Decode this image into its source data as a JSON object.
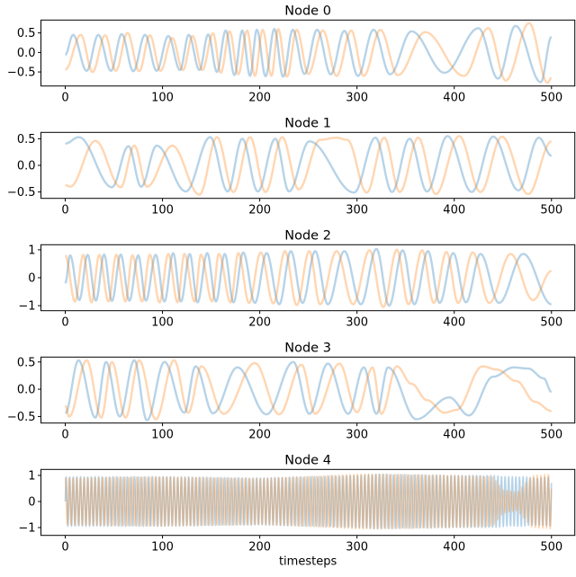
{
  "chart_data": [
    {
      "type": "line",
      "title": "Node 0",
      "xlim": [
        -25,
        524
      ],
      "ylim": [
        -0.86,
        0.83
      ],
      "xticks": [
        0,
        100,
        200,
        300,
        400,
        500
      ],
      "xtick_labels": [
        "0",
        "100",
        "200",
        "300",
        "400",
        "500"
      ],
      "yticks": [
        0.5,
        0.0,
        -0.5
      ],
      "ytick_labels": [
        "0.5",
        "0.0",
        "−0.5"
      ],
      "xlabel": "",
      "grid": false,
      "series": [
        {
          "color": "#1f77b4",
          "x": [
            0,
            8,
            22,
            34,
            47,
            58,
            70,
            82,
            94,
            106,
            118,
            127,
            138,
            147,
            156,
            165,
            174,
            182,
            190,
            197,
            206,
            215,
            224,
            234,
            246,
            259,
            273,
            287,
            301,
            317,
            334,
            356,
            390,
            425,
            445,
            463,
            489,
            500
          ],
          "y": [
            -0.06,
            0.45,
            -0.47,
            0.45,
            -0.47,
            0.47,
            -0.48,
            0.45,
            -0.47,
            0.42,
            -0.45,
            0.45,
            -0.45,
            0.46,
            -0.5,
            0.56,
            -0.58,
            0.56,
            -0.6,
            0.58,
            -0.61,
            0.6,
            -0.62,
            0.58,
            -0.55,
            0.58,
            -0.56,
            0.55,
            -0.6,
            0.58,
            -0.56,
            0.54,
            -0.52,
            0.62,
            -0.67,
            0.68,
            -0.76,
            0.4
          ]
        },
        {
          "color": "#ff7f0e",
          "x": [
            0,
            16,
            28,
            41,
            52,
            64,
            76,
            87,
            98,
            110,
            121,
            131,
            141,
            152,
            160,
            169,
            178,
            187,
            195,
            203,
            212,
            219,
            228,
            238,
            250,
            265,
            279,
            294,
            307,
            324,
            342,
            370,
            410,
            435,
            453,
            477,
            496,
            500
          ],
          "y": [
            -0.44,
            0.45,
            -0.5,
            0.44,
            -0.47,
            0.5,
            -0.48,
            0.44,
            -0.47,
            0.37,
            -0.45,
            0.42,
            -0.45,
            0.49,
            -0.52,
            0.54,
            -0.56,
            0.56,
            -0.6,
            0.58,
            -0.6,
            0.6,
            -0.62,
            0.58,
            -0.55,
            0.56,
            -0.6,
            0.56,
            -0.6,
            0.58,
            -0.58,
            0.52,
            -0.6,
            0.62,
            -0.72,
            0.75,
            -0.78,
            -0.65
          ]
        }
      ]
    },
    {
      "type": "line",
      "title": "Node 1",
      "xlim": [
        -25,
        524
      ],
      "ylim": [
        -0.62,
        0.62
      ],
      "xticks": [
        0,
        100,
        200,
        300,
        400,
        500
      ],
      "xtick_labels": [
        "0",
        "100",
        "200",
        "300",
        "400",
        "500"
      ],
      "yticks": [
        0.5,
        0.0,
        -0.5
      ],
      "ytick_labels": [
        "0.5",
        "0.0",
        "−0.5"
      ],
      "xlabel": "",
      "grid": false,
      "series": [
        {
          "color": "#1f77b4",
          "x": [
            0,
            14,
            48,
            65,
            78,
            94,
            124,
            149,
            167,
            182,
            198,
            216,
            230,
            251,
            297,
            319,
            336,
            354,
            372,
            393,
            418,
            440,
            466,
            487,
            500
          ],
          "y": [
            0.41,
            0.53,
            -0.41,
            0.36,
            -0.4,
            0.37,
            -0.49,
            0.53,
            -0.49,
            0.5,
            -0.49,
            0.5,
            -0.49,
            0.45,
            -0.51,
            0.52,
            -0.5,
            0.5,
            -0.49,
            0.55,
            -0.5,
            0.54,
            -0.47,
            0.52,
            0.18
          ]
        },
        {
          "color": "#ff7f0e",
          "x": [
            0,
            5,
            31,
            57,
            71,
            84,
            110,
            138,
            156,
            173,
            190,
            206,
            223,
            240,
            262,
            279,
            290,
            310,
            328,
            344,
            363,
            381,
            405,
            427,
            449,
            476,
            500
          ],
          "y": [
            -0.37,
            -0.4,
            0.46,
            -0.41,
            0.37,
            -0.4,
            0.37,
            -0.55,
            0.53,
            -0.5,
            0.53,
            -0.5,
            0.53,
            -0.45,
            0.48,
            0.52,
            0.48,
            -0.51,
            0.52,
            -0.5,
            0.52,
            -0.54,
            0.55,
            -0.5,
            0.54,
            -0.54,
            0.45
          ]
        }
      ]
    },
    {
      "type": "line",
      "title": "Node 2",
      "xlim": [
        -25,
        524
      ],
      "ylim": [
        -1.18,
        1.18
      ],
      "xticks": [
        0,
        100,
        200,
        300,
        400,
        500
      ],
      "xtick_labels": [
        "0",
        "100",
        "200",
        "300",
        "400",
        "500"
      ],
      "yticks": [
        1,
        0,
        -1
      ],
      "ytick_labels": [
        "1",
        "0",
        "−1"
      ],
      "xlabel": "",
      "grid": false,
      "series": [
        {
          "color": "#1f77b4",
          "x": [
            0,
            5,
            14.5,
            23,
            31.5,
            40,
            48,
            57,
            66,
            75,
            83,
            93,
            102,
            111,
            119,
            128,
            136,
            146,
            155,
            164,
            173,
            183,
            195,
            207,
            220,
            232,
            244,
            257,
            270,
            287,
            304,
            320,
            333,
            347,
            359,
            373,
            385,
            399,
            412,
            427,
            446,
            471,
            500
          ],
          "y": [
            -0.2,
            0.8,
            -0.8,
            0.82,
            -0.82,
            0.83,
            -0.83,
            0.83,
            -0.82,
            0.8,
            -0.82,
            0.82,
            -0.85,
            0.88,
            -0.85,
            0.85,
            -0.88,
            0.88,
            -0.85,
            0.85,
            -0.88,
            0.9,
            -0.9,
            0.88,
            -0.95,
            0.95,
            -0.9,
            0.95,
            -0.95,
            0.95,
            -0.95,
            1.03,
            -1.0,
            0.98,
            -0.95,
            0.95,
            -0.9,
            0.88,
            -0.88,
            0.85,
            -0.9,
            0.85,
            -0.95
          ]
        },
        {
          "color": "#ff7f0e",
          "x": [
            0,
            10,
            18.5,
            27,
            35,
            44.5,
            52.5,
            62,
            69,
            79,
            87,
            97,
            106,
            115.5,
            122.5,
            133,
            139.5,
            151,
            158,
            170,
            178,
            189,
            201,
            214,
            226,
            238,
            251,
            262,
            279,
            296,
            313,
            327,
            341,
            353,
            367,
            379,
            392,
            404,
            419,
            436,
            458,
            481,
            500
          ],
          "y": [
            0.8,
            -0.85,
            0.82,
            -0.88,
            0.82,
            -0.85,
            0.82,
            -0.85,
            0.8,
            -0.85,
            0.82,
            -0.88,
            0.85,
            -0.88,
            0.85,
            -0.85,
            0.82,
            -0.85,
            0.85,
            -0.88,
            0.88,
            -0.9,
            0.9,
            -0.92,
            0.95,
            -0.98,
            0.95,
            -0.95,
            0.95,
            -0.95,
            0.98,
            -1.05,
            1.0,
            -0.95,
            0.98,
            -0.9,
            0.92,
            -0.9,
            0.9,
            -0.9,
            0.85,
            -0.8,
            0.24
          ]
        }
      ]
    },
    {
      "type": "line",
      "title": "Node 3",
      "xlim": [
        -25,
        524
      ],
      "ylim": [
        -0.62,
        0.59
      ],
      "xticks": [
        0,
        100,
        200,
        300,
        400,
        500
      ],
      "xtick_labels": [
        "0",
        "100",
        "200",
        "300",
        "400",
        "500"
      ],
      "yticks": [
        0.5,
        0.0,
        -0.5
      ],
      "ytick_labels": [
        "0.5",
        "0.0",
        "−0.5"
      ],
      "xlabel": "",
      "grid": false,
      "series": [
        {
          "color": "#1f77b4",
          "x": [
            0,
            13.6,
            31,
            42,
            56,
            71,
            84,
            102,
            122.5,
            134,
            152,
            177,
            207,
            234.5,
            251,
            270,
            291,
            307,
            320,
            332,
            361,
            395,
            415,
            440,
            461,
            476,
            492,
            500
          ],
          "y": [
            -0.44,
            0.53,
            -0.52,
            0.5,
            -0.5,
            0.53,
            -0.57,
            0.5,
            -0.43,
            0.42,
            -0.44,
            0.4,
            -0.46,
            0.5,
            -0.45,
            0.47,
            -0.45,
            0.4,
            -0.45,
            0.4,
            -0.55,
            -0.15,
            -0.48,
            0.23,
            0.4,
            0.38,
            0.2,
            -0.05
          ]
        },
        {
          "color": "#ff7f0e",
          "x": [
            0,
            4,
            22,
            37,
            48,
            62,
            76,
            93,
            112,
            126.5,
            140,
            163,
            195,
            220,
            243,
            257,
            282,
            300,
            316,
            325,
            341,
            356,
            372,
            390,
            402,
            429,
            444,
            464,
            483,
            500
          ],
          "y": [
            -0.3,
            -0.5,
            0.53,
            -0.52,
            0.5,
            -0.52,
            0.53,
            -0.55,
            0.53,
            -0.43,
            0.42,
            -0.45,
            0.48,
            -0.46,
            0.45,
            -0.45,
            0.47,
            -0.42,
            0.4,
            -0.45,
            0.42,
            0.1,
            -0.2,
            -0.43,
            -0.38,
            0.42,
            0.36,
            0.15,
            -0.23,
            -0.4
          ]
        }
      ]
    },
    {
      "type": "line",
      "title": "Node 4",
      "xlim": [
        -25,
        524
      ],
      "ylim": [
        -1.3,
        1.23
      ],
      "xticks": [
        0,
        100,
        200,
        300,
        400,
        500
      ],
      "xtick_labels": [
        "0",
        "100",
        "200",
        "300",
        "400",
        "500"
      ],
      "yticks": [
        1,
        0,
        -1
      ],
      "ytick_labels": [
        "1",
        "0",
        "−1"
      ],
      "xlabel": "timesteps",
      "grid": false,
      "series": [
        {
          "color": "#1f77b4",
          "envelope": {
            "x": [
              0,
              100,
              200,
              300,
              320,
              400,
              440,
              455,
              470,
              485,
              500
            ],
            "amplitude": [
              0.95,
              0.95,
              0.9,
              1.0,
              1.05,
              1.0,
              1.0,
              0.95,
              0.95,
              0.9,
              0.95
            ]
          }
        },
        {
          "color": "#ff7f0e",
          "envelope": {
            "x": [
              0,
              100,
              200,
              300,
              330,
              400,
              440,
              450,
              465,
              480,
              500
            ],
            "amplitude": [
              0.9,
              0.95,
              0.88,
              1.05,
              1.05,
              1.0,
              0.95,
              0.45,
              0.35,
              1.0,
              1.05
            ]
          }
        }
      ]
    }
  ]
}
